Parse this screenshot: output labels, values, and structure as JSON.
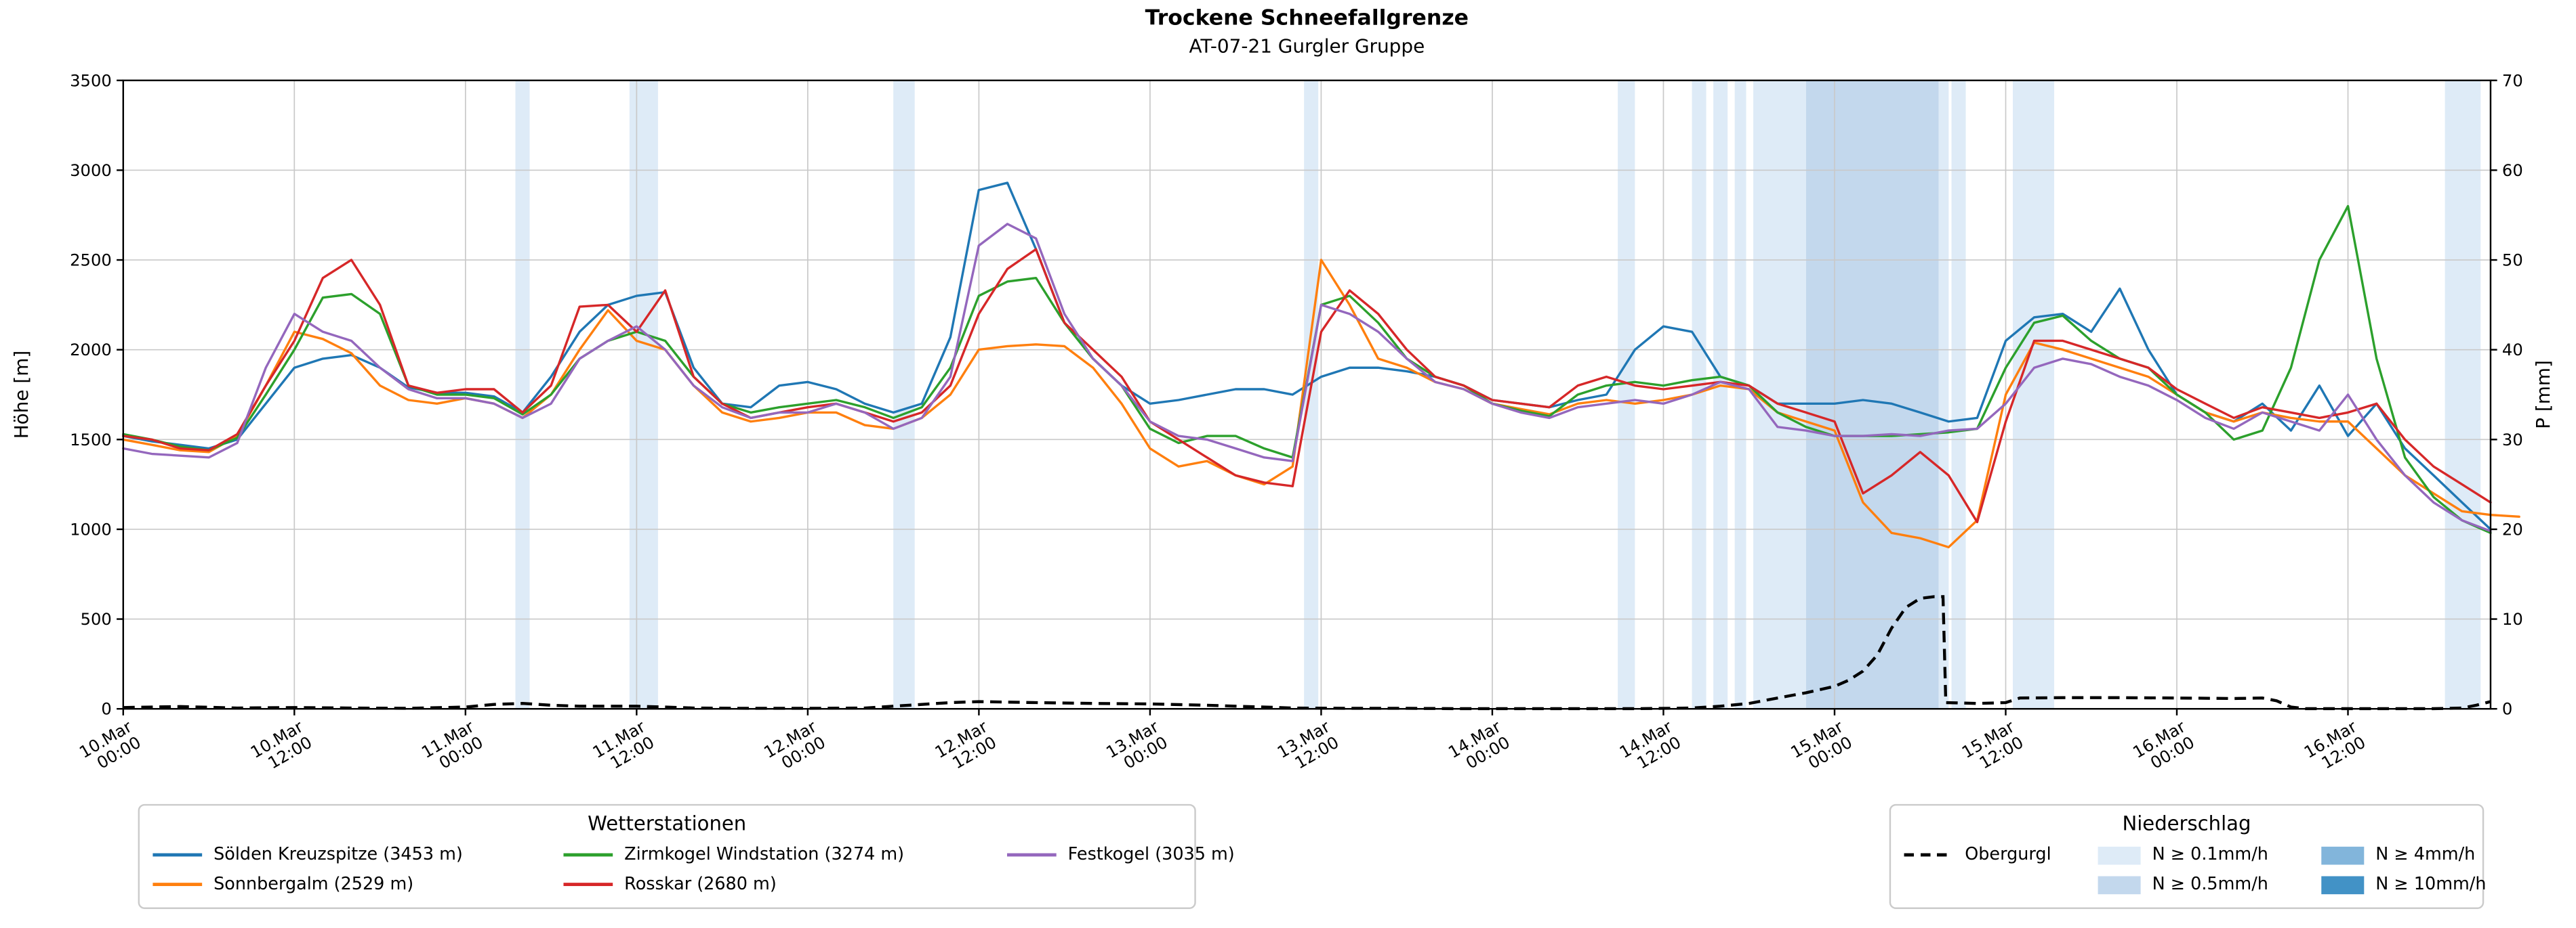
{
  "legends": {
    "stations_title": "Wetterstationen",
    "precip_title": "Niederschlag"
  },
  "chart_data": {
    "type": "line",
    "title": "Trockene Schneefallgrenze",
    "subtitle": "AT-07-21 Gurgler Gruppe",
    "ylabel_left": "Höhe [m]",
    "ylabel_right": "P [mm]",
    "ylim_left": [
      0,
      3500
    ],
    "ylim_right": [
      0,
      70
    ],
    "yticks_left": [
      0,
      500,
      1000,
      1500,
      2000,
      2500,
      3000,
      3500
    ],
    "yticks_right": [
      0,
      10,
      20,
      30,
      40,
      50,
      60,
      70
    ],
    "grid": true,
    "grid_color": "#c9c9c9",
    "legend_position": "below",
    "x_range_hours": [
      0,
      166
    ],
    "x_start_hour": 0,
    "x_step_hours": 2,
    "x_ticks": [
      {
        "h": 0,
        "line1": "10.Mar",
        "line2": "00:00"
      },
      {
        "h": 12,
        "line1": "10.Mar",
        "line2": "12:00"
      },
      {
        "h": 24,
        "line1": "11.Mar",
        "line2": "00:00"
      },
      {
        "h": 36,
        "line1": "11.Mar",
        "line2": "12:00"
      },
      {
        "h": 48,
        "line1": "12.Mar",
        "line2": "00:00"
      },
      {
        "h": 60,
        "line1": "12.Mar",
        "line2": "12:00"
      },
      {
        "h": 72,
        "line1": "13.Mar",
        "line2": "00:00"
      },
      {
        "h": 84,
        "line1": "13.Mar",
        "line2": "12:00"
      },
      {
        "h": 96,
        "line1": "14.Mar",
        "line2": "00:00"
      },
      {
        "h": 108,
        "line1": "14.Mar",
        "line2": "12:00"
      },
      {
        "h": 120,
        "line1": "15.Mar",
        "line2": "00:00"
      },
      {
        "h": 132,
        "line1": "15.Mar",
        "line2": "12:00"
      },
      {
        "h": 144,
        "line1": "16.Mar",
        "line2": "00:00"
      },
      {
        "h": 156,
        "line1": "16.Mar",
        "line2": "12:00"
      }
    ],
    "series": [
      {
        "name": "Sölden Kreuzspitze (3453 m)",
        "color": "#1f77b4",
        "values": [
          1520,
          1490,
          1470,
          1450,
          1500,
          1700,
          1900,
          1950,
          1970,
          1900,
          1790,
          1760,
          1760,
          1740,
          1650,
          1850,
          2100,
          2250,
          2300,
          2320,
          1900,
          1700,
          1680,
          1800,
          1820,
          1780,
          1700,
          1650,
          1700,
          2070,
          2890,
          2930,
          2560,
          2150,
          1950,
          1800,
          1700,
          1720,
          1750,
          1780,
          1780,
          1750,
          1850,
          1900,
          1900,
          1880,
          1850,
          1800,
          1720,
          1700,
          1680,
          1720,
          1750,
          2000,
          2130,
          2100,
          1850,
          1800,
          1700,
          1700,
          1700,
          1720,
          1700,
          1650,
          1600,
          1620,
          2050,
          2180,
          2200,
          2100,
          2340,
          2000,
          1750,
          1650,
          1600,
          1700,
          1550,
          1800,
          1520,
          1700,
          1450,
          1300,
          1150,
          1000
        ]
      },
      {
        "name": "Sonnbergalm (2529 m)",
        "color": "#ff7f0e",
        "values": [
          1500,
          1470,
          1440,
          1430,
          1520,
          1800,
          2100,
          2060,
          1980,
          1800,
          1720,
          1700,
          1730,
          1700,
          1620,
          1750,
          2000,
          2220,
          2050,
          2000,
          1800,
          1650,
          1600,
          1620,
          1650,
          1650,
          1580,
          1560,
          1620,
          1750,
          2000,
          2020,
          2030,
          2020,
          1900,
          1700,
          1450,
          1350,
          1380,
          1300,
          1250,
          1350,
          2500,
          2250,
          1950,
          1900,
          1820,
          1780,
          1700,
          1670,
          1640,
          1700,
          1720,
          1700,
          1720,
          1750,
          1800,
          1780,
          1650,
          1600,
          1550,
          1150,
          980,
          950,
          900,
          1050,
          1750,
          2040,
          2000,
          1950,
          1900,
          1850,
          1750,
          1650,
          1600,
          1650,
          1620,
          1600,
          1600,
          1450,
          1300,
          1200,
          1100,
          1080,
          1070
        ]
      },
      {
        "name": "Zirmkogel Windstation (3274 m)",
        "color": "#2ca02c",
        "values": [
          1530,
          1500,
          1460,
          1440,
          1510,
          1750,
          2000,
          2290,
          2310,
          2200,
          1800,
          1750,
          1750,
          1730,
          1640,
          1750,
          1950,
          2050,
          2100,
          2050,
          1850,
          1700,
          1650,
          1680,
          1700,
          1720,
          1680,
          1620,
          1680,
          1900,
          2300,
          2380,
          2400,
          2150,
          1950,
          1800,
          1560,
          1480,
          1520,
          1520,
          1450,
          1400,
          2250,
          2300,
          2150,
          1950,
          1850,
          1800,
          1700,
          1660,
          1630,
          1750,
          1800,
          1820,
          1800,
          1830,
          1850,
          1800,
          1650,
          1570,
          1520,
          1520,
          1520,
          1530,
          1540,
          1560,
          1900,
          2150,
          2190,
          2050,
          1950,
          1900,
          1750,
          1650,
          1500,
          1550,
          1900,
          2500,
          2800,
          1950,
          1400,
          1180,
          1050,
          980
        ]
      },
      {
        "name": "Rosskar (2680 m)",
        "color": "#d62728",
        "values": [
          1520,
          1500,
          1450,
          1440,
          1530,
          1800,
          2050,
          2400,
          2500,
          2250,
          1800,
          1760,
          1780,
          1780,
          1650,
          1800,
          2240,
          2250,
          2100,
          2330,
          1850,
          1700,
          1620,
          1650,
          1680,
          1700,
          1650,
          1600,
          1650,
          1800,
          2200,
          2450,
          2560,
          2150,
          2000,
          1850,
          1600,
          1500,
          1400,
          1300,
          1260,
          1240,
          2100,
          2330,
          2200,
          2000,
          1850,
          1800,
          1720,
          1700,
          1680,
          1800,
          1850,
          1800,
          1780,
          1800,
          1820,
          1800,
          1700,
          1650,
          1600,
          1200,
          1300,
          1430,
          1300,
          1040,
          1600,
          2050,
          2050,
          2000,
          1950,
          1900,
          1780,
          1700,
          1620,
          1680,
          1650,
          1620,
          1650,
          1700,
          1500,
          1350,
          1250,
          1150
        ]
      },
      {
        "name": "Festkogel (3035 m)",
        "color": "#9467bd",
        "values": [
          1450,
          1420,
          1410,
          1400,
          1480,
          1900,
          2200,
          2100,
          2050,
          1900,
          1780,
          1730,
          1730,
          1700,
          1620,
          1700,
          1950,
          2050,
          2130,
          2000,
          1800,
          1680,
          1620,
          1650,
          1650,
          1700,
          1650,
          1560,
          1620,
          1850,
          2580,
          2700,
          2620,
          2200,
          1950,
          1800,
          1600,
          1520,
          1500,
          1450,
          1400,
          1380,
          2250,
          2200,
          2100,
          1950,
          1820,
          1780,
          1700,
          1650,
          1620,
          1680,
          1700,
          1720,
          1700,
          1750,
          1820,
          1780,
          1570,
          1550,
          1520,
          1520,
          1530,
          1520,
          1550,
          1560,
          1700,
          1900,
          1950,
          1920,
          1850,
          1800,
          1720,
          1620,
          1560,
          1650,
          1600,
          1550,
          1750,
          1500,
          1300,
          1150,
          1050,
          990
        ]
      }
    ],
    "obergurgl": {
      "name": "Obergurgl",
      "color": "#000000",
      "dash": true,
      "axis": "right",
      "points": [
        [
          0,
          0.15
        ],
        [
          4,
          0.25
        ],
        [
          8,
          0.1
        ],
        [
          12,
          0.15
        ],
        [
          16,
          0.1
        ],
        [
          20,
          0.05
        ],
        [
          24,
          0.2
        ],
        [
          26,
          0.5
        ],
        [
          28,
          0.6
        ],
        [
          30,
          0.4
        ],
        [
          32,
          0.3
        ],
        [
          36,
          0.3
        ],
        [
          38,
          0.2
        ],
        [
          40,
          0.1
        ],
        [
          44,
          0.05
        ],
        [
          48,
          0.05
        ],
        [
          52,
          0.1
        ],
        [
          54,
          0.3
        ],
        [
          56,
          0.5
        ],
        [
          58,
          0.7
        ],
        [
          60,
          0.8
        ],
        [
          64,
          0.7
        ],
        [
          68,
          0.6
        ],
        [
          72,
          0.55
        ],
        [
          76,
          0.4
        ],
        [
          78,
          0.3
        ],
        [
          80,
          0.2
        ],
        [
          82,
          0.1
        ],
        [
          86,
          0.05
        ],
        [
          90,
          0.05
        ],
        [
          94,
          0.02
        ],
        [
          100,
          0.02
        ],
        [
          106,
          0.02
        ],
        [
          110,
          0.1
        ],
        [
          112,
          0.3
        ],
        [
          114,
          0.6
        ],
        [
          116,
          1.2
        ],
        [
          118,
          1.8
        ],
        [
          120,
          2.5
        ],
        [
          121,
          3.2
        ],
        [
          122,
          4.2
        ],
        [
          123,
          6
        ],
        [
          124,
          9
        ],
        [
          125,
          11.3
        ],
        [
          126,
          12.3
        ],
        [
          127,
          12.5
        ],
        [
          127.6,
          12.5
        ],
        [
          127.8,
          0.7
        ],
        [
          130,
          0.6
        ],
        [
          132,
          0.7
        ],
        [
          133,
          1.2
        ],
        [
          136,
          1.25
        ],
        [
          140,
          1.25
        ],
        [
          144,
          1.2
        ],
        [
          148,
          1.15
        ],
        [
          150,
          1.2
        ],
        [
          151,
          0.9
        ],
        [
          152,
          0.2
        ],
        [
          153,
          0.02
        ],
        [
          158,
          0.02
        ],
        [
          162,
          0.02
        ],
        [
          164,
          0.1
        ],
        [
          165,
          0.4
        ],
        [
          166,
          0.8
        ]
      ]
    },
    "precip_bands": [
      [
        27.5,
        28.5,
        0
      ],
      [
        35.5,
        37.5,
        0
      ],
      [
        54,
        55.5,
        0
      ],
      [
        82.8,
        83.8,
        0
      ],
      [
        104.8,
        106,
        0
      ],
      [
        110,
        111,
        0
      ],
      [
        111.5,
        112.5,
        0
      ],
      [
        113,
        113.8,
        0
      ],
      [
        114.3,
        118,
        0
      ],
      [
        118,
        127.3,
        1
      ],
      [
        127.3,
        128,
        0
      ],
      [
        128.2,
        129.2,
        0
      ],
      [
        132.5,
        135.4,
        0
      ],
      [
        162.8,
        165.3,
        0
      ]
    ],
    "precip_levels": [
      {
        "label": "N ≥ 0.1mm/h",
        "color": "#deebf7"
      },
      {
        "label": "N ≥ 0.5mm/h",
        "color": "#c3d8ed"
      },
      {
        "label": "N ≥ 4mm/h",
        "color": "#82b5db"
      },
      {
        "label": "N ≥ 10mm/h",
        "color": "#4292c6"
      }
    ]
  }
}
